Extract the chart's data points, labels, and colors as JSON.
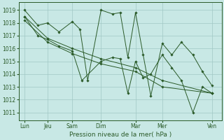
{
  "title": "Pression niveau de la mer( hPa )",
  "ylabel_values": [
    1011,
    1012,
    1013,
    1014,
    1015,
    1016,
    1017,
    1018,
    1019
  ],
  "ylim": [
    1010.4,
    1019.6
  ],
  "xlim": [
    -0.3,
    10.3
  ],
  "x_ticks_labels": [
    "Lun",
    "Jeu",
    "Sam",
    "Dim",
    "Mar",
    "Mer",
    "Ven"
  ],
  "x_ticks_pos": [
    0.0,
    1.2,
    2.5,
    4.0,
    5.8,
    7.2,
    9.8
  ],
  "background_color": "#c8e8e5",
  "grid_color": "#a0c8c5",
  "line_color": "#2a5a28",
  "marker_color": "#2a5a28",
  "series": [
    {
      "x": [
        0.0,
        0.7,
        1.2,
        1.8,
        2.5,
        2.9,
        3.3,
        4.0,
        4.6,
        5.0,
        5.4,
        5.8,
        6.2,
        6.6,
        7.2,
        7.7,
        8.2,
        8.8,
        9.3,
        9.8
      ],
      "y": [
        1019.0,
        1017.8,
        1018.0,
        1017.3,
        1018.1,
        1017.5,
        1013.5,
        1019.0,
        1018.7,
        1018.8,
        1015.3,
        1018.8,
        1015.5,
        1012.3,
        1016.4,
        1015.5,
        1016.5,
        1015.5,
        1014.2,
        1013.1
      ]
    },
    {
      "x": [
        0.0,
        0.7,
        1.2,
        1.8,
        2.5,
        3.0,
        4.0,
        4.6,
        5.0,
        5.4,
        5.8,
        6.2,
        6.6,
        7.2,
        7.7,
        8.2,
        8.8,
        9.3,
        9.8
      ],
      "y": [
        1018.5,
        1017.0,
        1016.7,
        1016.2,
        1015.8,
        1013.5,
        1015.0,
        1015.3,
        1015.2,
        1012.5,
        1015.0,
        1013.7,
        1014.0,
        1015.5,
        1014.5,
        1013.5,
        1011.0,
        1013.0,
        1012.5
      ]
    },
    {
      "x": [
        0.0,
        1.2,
        2.5,
        4.0,
        5.8,
        7.2,
        9.8
      ],
      "y": [
        1018.5,
        1016.8,
        1016.0,
        1015.2,
        1014.5,
        1013.5,
        1012.5
      ]
    },
    {
      "x": [
        0.0,
        1.2,
        2.5,
        4.0,
        5.8,
        7.2,
        9.8
      ],
      "y": [
        1018.2,
        1016.5,
        1015.6,
        1014.8,
        1014.2,
        1013.0,
        1012.5
      ]
    }
  ]
}
